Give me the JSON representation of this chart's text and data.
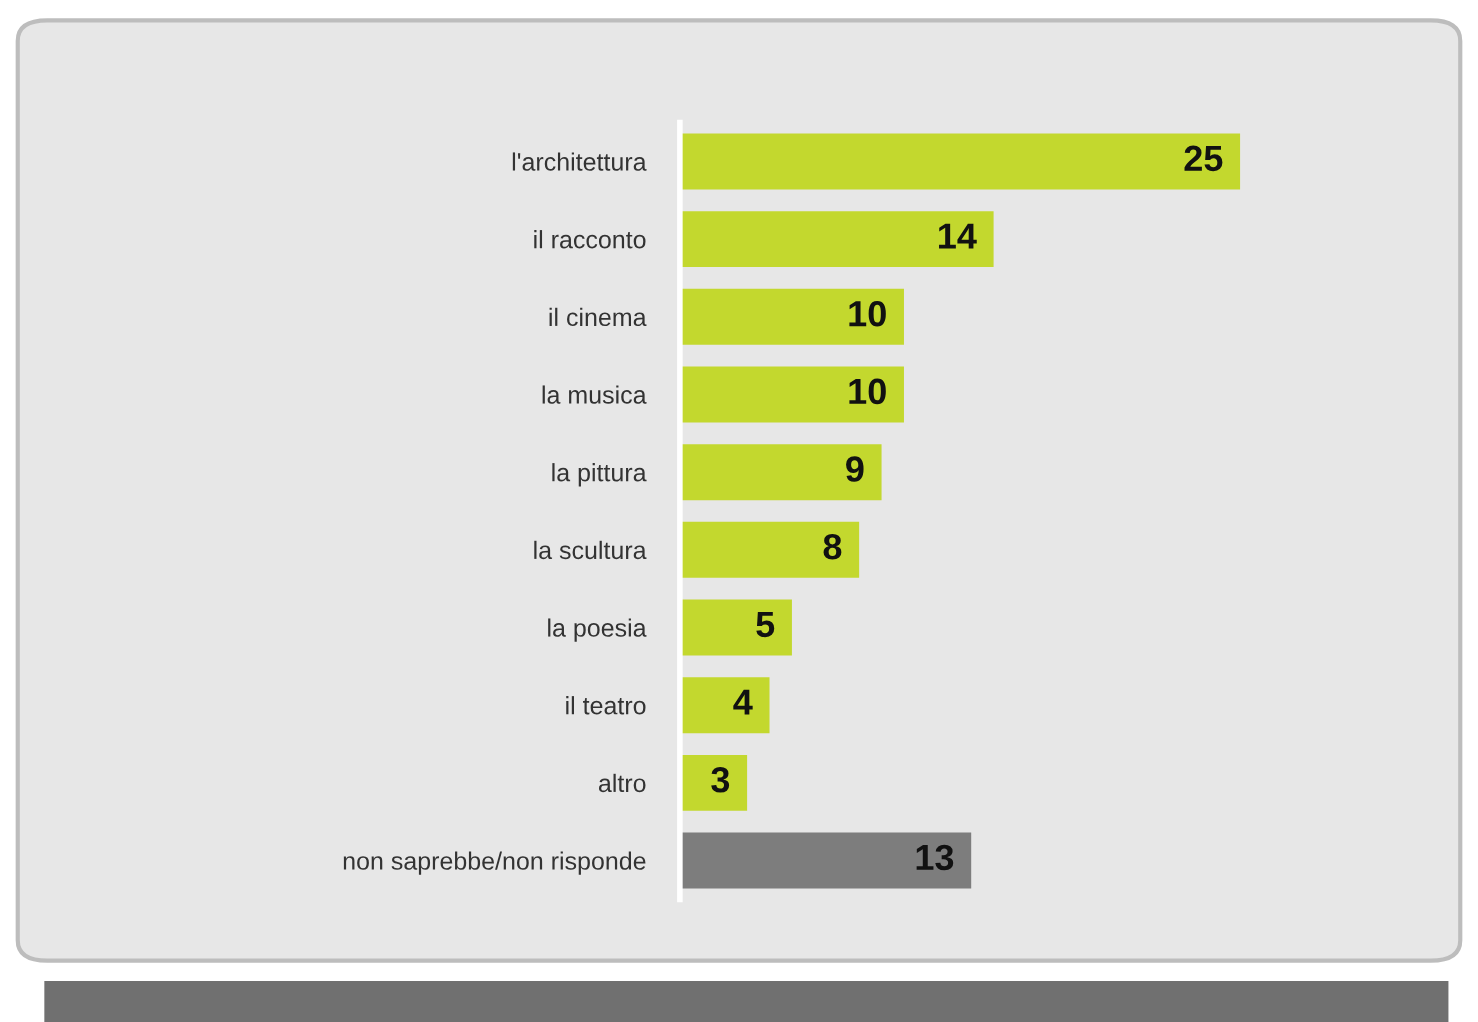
{
  "chart_data": {
    "type": "bar",
    "orientation": "horizontal",
    "categories": [
      "l'architettura",
      "il racconto",
      "il cinema",
      "la musica",
      "la pittura",
      "la scultura",
      "la poesia",
      "il teatro",
      "altro",
      "non saprebbe/non risponde"
    ],
    "values": [
      25,
      14,
      10,
      10,
      9,
      8,
      5,
      4,
      3,
      13
    ],
    "colors": [
      "#c3d82e",
      "#c3d82e",
      "#c3d82e",
      "#c3d82e",
      "#c3d82e",
      "#c3d82e",
      "#c3d82e",
      "#c3d82e",
      "#c3d82e",
      "#7d7d7d"
    ],
    "data_labels": true,
    "grid": false,
    "legend": false
  }
}
